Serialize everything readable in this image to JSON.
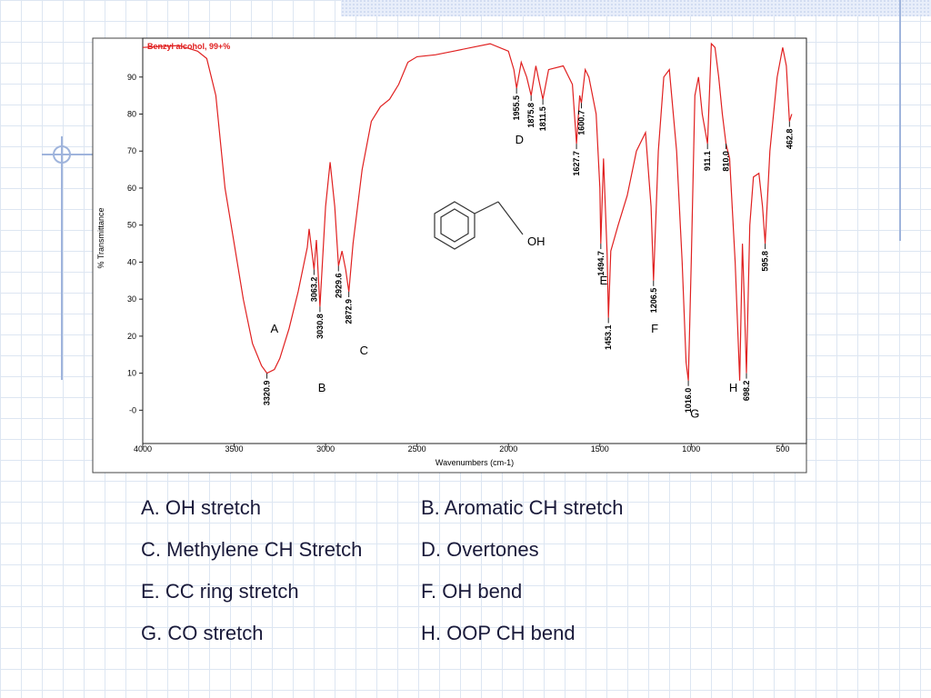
{
  "chart_data": {
    "type": "line",
    "title": "Benzyl alcohol, 99+%",
    "x_label": "Wavenumbers (cm-1)",
    "y_label": "% Transmittance",
    "structure_label": "OH",
    "color": "#e02020",
    "x": [
      4000,
      3800,
      3700,
      3650,
      3600,
      3550,
      3500,
      3450,
      3400,
      3350,
      3320.9,
      3280,
      3250,
      3200,
      3150,
      3100,
      3090,
      3063.2,
      3050,
      3030.8,
      3000,
      2975,
      2950,
      2929.6,
      2910,
      2890,
      2872.9,
      2850,
      2800,
      2750,
      2700,
      2650,
      2600,
      2550,
      2500,
      2400,
      2300,
      2200,
      2100,
      2000,
      1970,
      1955.5,
      1930,
      1900,
      1875.8,
      1850,
      1811.5,
      1780,
      1700,
      1650,
      1627.7,
      1610,
      1600.7,
      1580,
      1560,
      1520,
      1500,
      1494.7,
      1480,
      1460,
      1453.1,
      1440,
      1400,
      1350,
      1300,
      1250,
      1220,
      1206.5,
      1180,
      1150,
      1120,
      1080,
      1050,
      1028.4,
      1016.0,
      1000,
      980,
      960,
      940,
      911.1,
      890,
      870,
      850,
      830,
      810.0,
      790,
      760,
      735,
      720,
      710,
      698.2,
      680,
      660,
      630,
      610,
      595.8,
      570,
      530,
      500,
      480,
      462.8,
      450
    ],
    "values": [
      98,
      98.5,
      97,
      95,
      85,
      60,
      45,
      30,
      18,
      12,
      10,
      11,
      14,
      22,
      32,
      44,
      49,
      38,
      46,
      28,
      55,
      67,
      55,
      39,
      43,
      38,
      32,
      45,
      65,
      78,
      82,
      84,
      88,
      94,
      95.5,
      96,
      97,
      98,
      99,
      97,
      92,
      87,
      94,
      90,
      85,
      93,
      84,
      92,
      93,
      88,
      72,
      85,
      83,
      92,
      90,
      80,
      60,
      45,
      68,
      42,
      25,
      43,
      50,
      58,
      70,
      75,
      55,
      35,
      70,
      90,
      92,
      70,
      40,
      13,
      8,
      40,
      85,
      90,
      80,
      72,
      99,
      98,
      90,
      80,
      72,
      68,
      40,
      8,
      45,
      30,
      10,
      50,
      63,
      64,
      55,
      45,
      70,
      90,
      98,
      93,
      78,
      80
    ],
    "xlim": [
      4000,
      370
    ],
    "ylim": [
      -9,
      100.5
    ],
    "xticks": [
      4000,
      3500,
      3000,
      2500,
      2000,
      1500,
      1000,
      500
    ],
    "yticks": [
      {
        "value": 0,
        "label": "-0"
      },
      10,
      20,
      30,
      40,
      50,
      60,
      70,
      80,
      90
    ],
    "peaks": [
      {
        "x": 3320.9,
        "y": 10
      },
      {
        "x": 3063.2,
        "y": 38
      },
      {
        "x": 3030.8,
        "y": 28
      },
      {
        "x": 2929.6,
        "y": 39
      },
      {
        "x": 2872.9,
        "y": 32
      },
      {
        "x": 1955.5,
        "y": 87
      },
      {
        "x": 1875.8,
        "y": 85
      },
      {
        "x": 1811.5,
        "y": 84
      },
      {
        "x": 1627.7,
        "y": 72
      },
      {
        "x": 1600.7,
        "y": 83
      },
      {
        "x": 1494.7,
        "y": 45
      },
      {
        "x": 1453.1,
        "y": 25
      },
      {
        "x": 1206.5,
        "y": 35
      },
      {
        "x": {
          "value": 1016.0,
          "label": "1016.0"
        },
        "y": 8
      },
      {
        "x": 911.1,
        "y": 72
      },
      {
        "x": {
          "value": 810.0,
          "label": "810.0"
        },
        "y": 72
      },
      {
        "x": 698.2,
        "y": 10
      },
      {
        "x": 595.8,
        "y": 45
      },
      {
        "x": 462.8,
        "y": 78
      }
    ],
    "region_labels": [
      {
        "text": "A",
        "x": 3280,
        "y": 21
      },
      {
        "text": "B",
        "x": 3020,
        "y": 5
      },
      {
        "text": "C",
        "x": 2790,
        "y": 15
      },
      {
        "text": "D",
        "x": 1940,
        "y": 72
      },
      {
        "text": "E",
        "x": 1480,
        "y": 34
      },
      {
        "text": "F",
        "x": 1200,
        "y": 21
      },
      {
        "text": "G",
        "x": 980,
        "y": -2
      },
      {
        "text": "H",
        "x": 770,
        "y": 5
      }
    ]
  },
  "items": [
    "A. OH stretch",
    "B. Aromatic CH stretch",
    "C. Methylene CH Stretch",
    "D. Overtones",
    "E. CC ring stretch",
    "F. OH bend",
    "G. CO stretch",
    "H. OOP CH bend"
  ]
}
